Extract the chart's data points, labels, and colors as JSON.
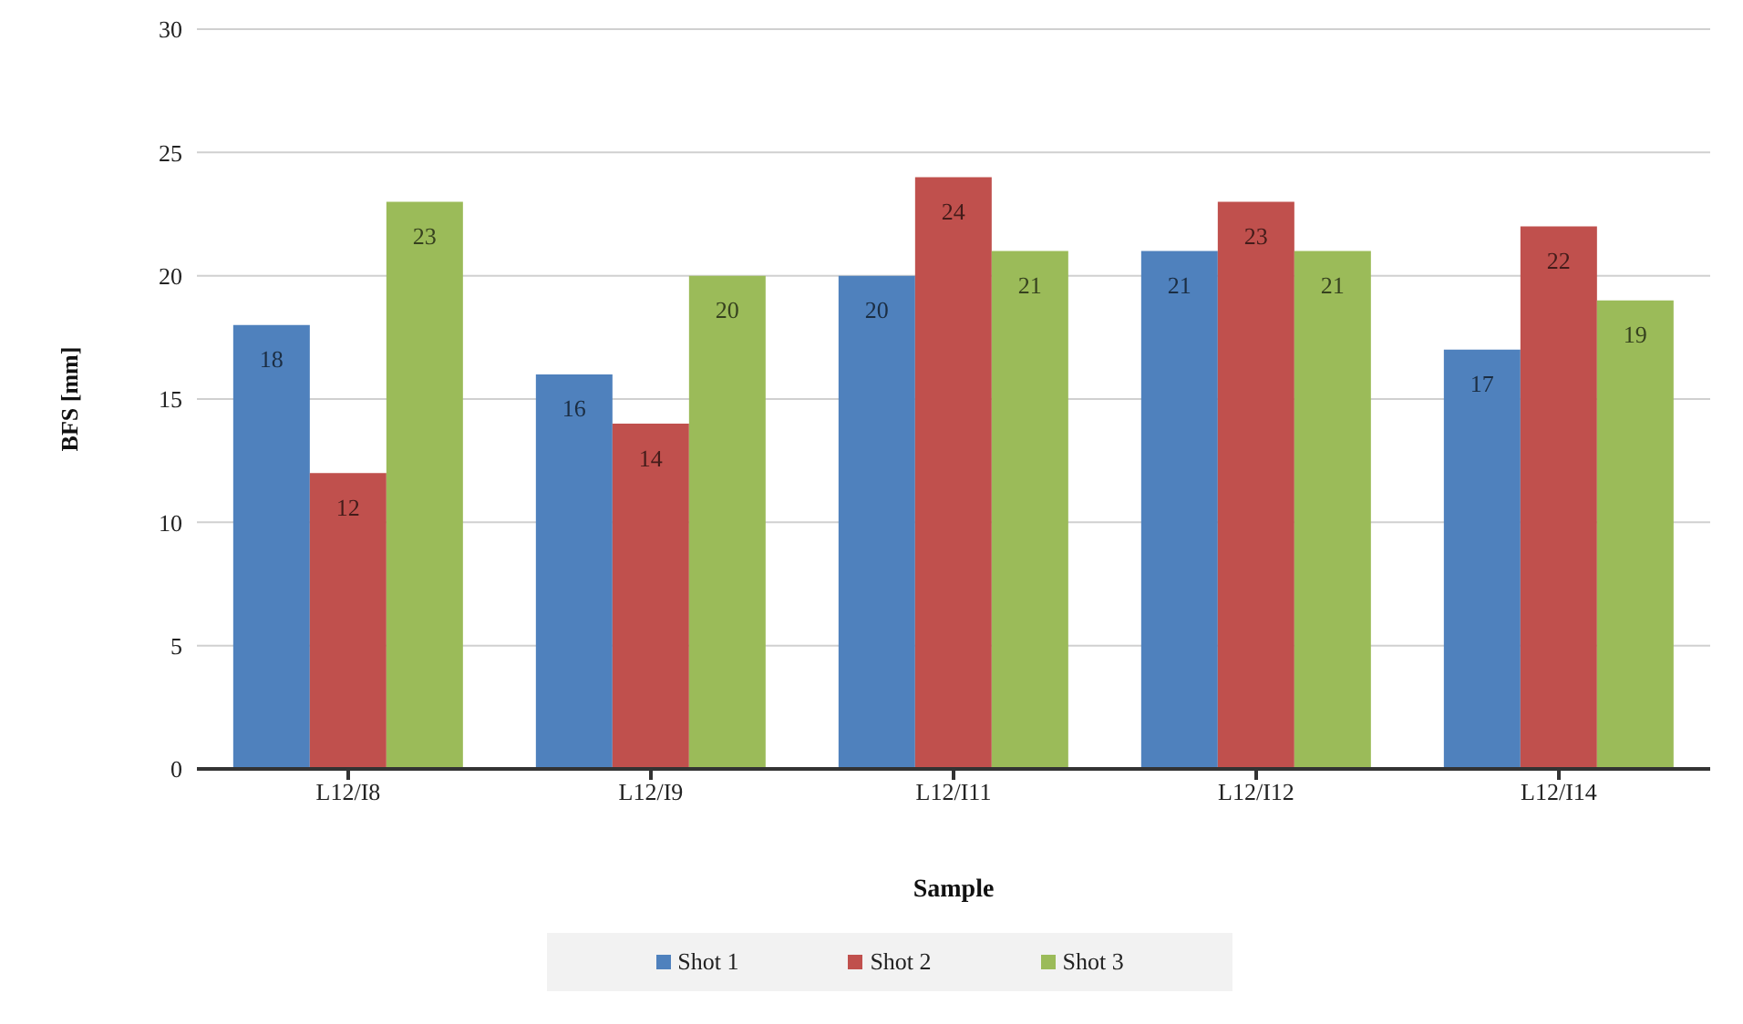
{
  "chart_data": {
    "type": "bar",
    "xlabel": "Sample",
    "ylabel": "BFS [mm]",
    "categories": [
      "L12/I8",
      "L12/I9",
      "L12/I11",
      "L12/I12",
      "L12/I14"
    ],
    "series": [
      {
        "name": "Shot 1",
        "color": "#4f81bd",
        "values": [
          18,
          16,
          20,
          21,
          17
        ]
      },
      {
        "name": "Shot 2",
        "color": "#c0504d",
        "values": [
          12,
          14,
          24,
          23,
          22
        ]
      },
      {
        "name": "Shot 3",
        "color": "#9bbb59",
        "values": [
          23,
          20,
          21,
          21,
          19
        ]
      }
    ],
    "ylim": [
      0,
      30
    ],
    "yticks": [
      0,
      5,
      10,
      15,
      20,
      25,
      30
    ],
    "grid": "y",
    "legend": "bottom",
    "data_labels": true
  }
}
